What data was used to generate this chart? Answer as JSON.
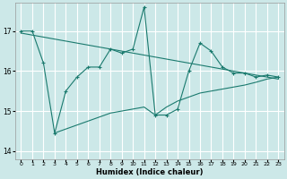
{
  "xlabel": "Humidex (Indice chaleur)",
  "bg_color": "#cce8e8",
  "grid_color": "#ffffff",
  "line_color": "#1a7a6e",
  "xlim": [
    -0.5,
    23.5
  ],
  "ylim": [
    13.8,
    17.7
  ],
  "yticks": [
    14,
    15,
    16,
    17
  ],
  "xticks": [
    0,
    1,
    2,
    3,
    4,
    5,
    6,
    7,
    8,
    9,
    10,
    11,
    12,
    13,
    14,
    15,
    16,
    17,
    18,
    19,
    20,
    21,
    22,
    23
  ],
  "line1_x": [
    0,
    1,
    2,
    3,
    4,
    5,
    6,
    7,
    8,
    9,
    10,
    11,
    12,
    13,
    14,
    15,
    16,
    17,
    18,
    19,
    20,
    21,
    22,
    23
  ],
  "line1_y": [
    17.0,
    17.0,
    16.2,
    14.45,
    15.5,
    15.85,
    16.1,
    16.1,
    16.55,
    16.45,
    16.55,
    17.6,
    14.9,
    14.9,
    15.05,
    16.0,
    16.7,
    16.5,
    16.1,
    15.95,
    15.95,
    15.85,
    15.9,
    15.85
  ],
  "line2_x": [
    0,
    1,
    2,
    3,
    4,
    5,
    6,
    7,
    8,
    9,
    10,
    11,
    12,
    13,
    14,
    15,
    16,
    17,
    18,
    19,
    20,
    21,
    22,
    23
  ],
  "line2_y": [
    16.95,
    16.9,
    16.85,
    16.8,
    16.75,
    16.7,
    16.65,
    16.6,
    16.55,
    16.5,
    16.45,
    16.4,
    16.35,
    16.3,
    16.25,
    16.2,
    16.15,
    16.1,
    16.05,
    16.0,
    15.95,
    15.9,
    15.85,
    15.8
  ],
  "line3_x": [
    3,
    4,
    5,
    6,
    7,
    8,
    9,
    10,
    11,
    12,
    13,
    14,
    15,
    16,
    17,
    18,
    19,
    20,
    21,
    22,
    23
  ],
  "line3_y": [
    14.45,
    14.55,
    14.65,
    14.75,
    14.85,
    14.95,
    15.0,
    15.05,
    15.1,
    14.9,
    15.1,
    15.25,
    15.35,
    15.45,
    15.5,
    15.55,
    15.6,
    15.65,
    15.72,
    15.8,
    15.85
  ]
}
